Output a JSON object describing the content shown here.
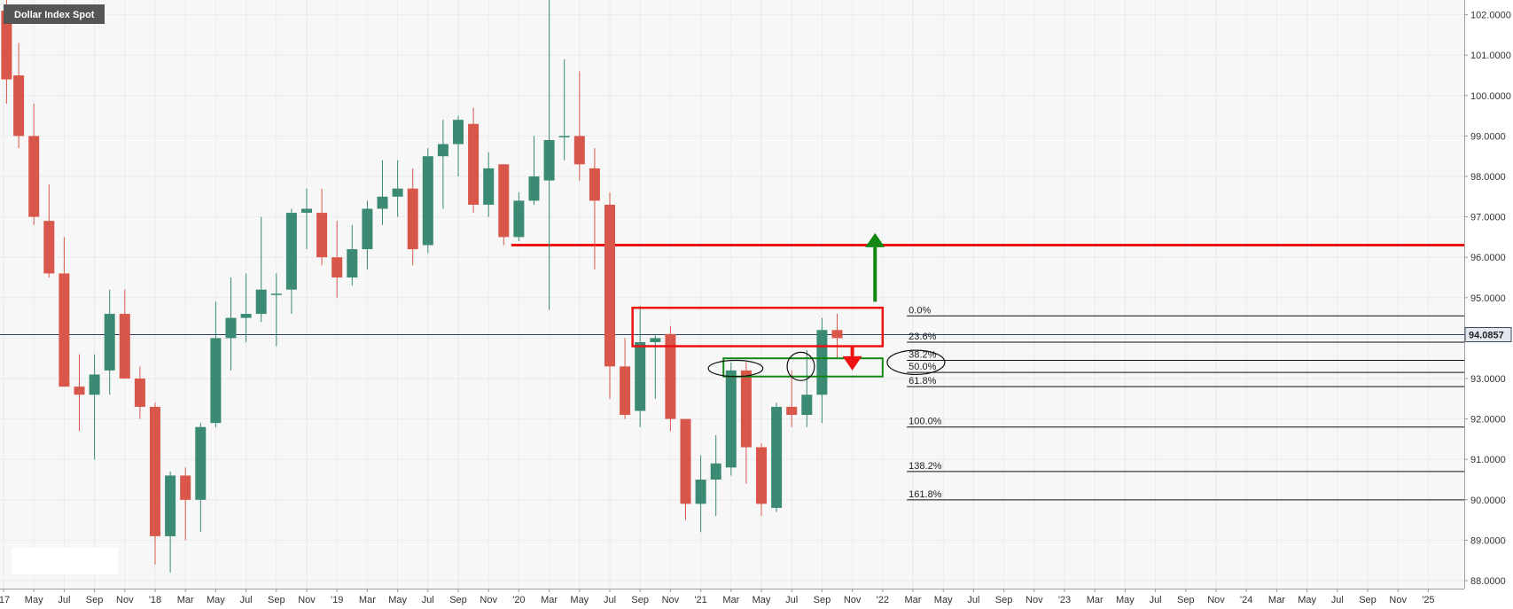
{
  "title": "Dollar Index Spot",
  "current_price": "94.0857",
  "colors": {
    "up": "#3a8a74",
    "down": "#d9574a",
    "resistance_line": "#ee1111",
    "target_arrow": "#118811",
    "down_arrow": "#ee1111",
    "support_box": "#118811",
    "title_bg": "#555555",
    "price_tag_bg": "#3b4a5c",
    "grid": "#e8eaee",
    "background": "#f7f7f7"
  },
  "chart_data": {
    "type": "candlestick",
    "title": "Dollar Index Spot",
    "ylim": [
      88.0,
      102.2
    ],
    "y_ticks": [
      {
        "value": 102,
        "label": "102.0000"
      },
      {
        "value": 101,
        "label": "101.0000"
      },
      {
        "value": 100,
        "label": "100.0000"
      },
      {
        "value": 99,
        "label": "99.0000"
      },
      {
        "value": 98,
        "label": "98.0000"
      },
      {
        "value": 97,
        "label": "97.0000"
      },
      {
        "value": 96,
        "label": "96.0000"
      },
      {
        "value": 95,
        "label": "95.0000"
      },
      {
        "value": 94,
        "label": "94.0000"
      },
      {
        "value": 93,
        "label": "93.0000"
      },
      {
        "value": 92,
        "label": "92.0000"
      },
      {
        "value": 91,
        "label": "91.0000"
      },
      {
        "value": 90,
        "label": "90.0000"
      },
      {
        "value": 89,
        "label": "89.0000"
      },
      {
        "value": 88,
        "label": "88.0000"
      }
    ],
    "x_ticks": [
      {
        "t": 0,
        "label": "'17"
      },
      {
        "t": 2,
        "label": "May"
      },
      {
        "t": 4,
        "label": "Jul"
      },
      {
        "t": 6,
        "label": "Sep"
      },
      {
        "t": 8,
        "label": "Nov"
      },
      {
        "t": 10,
        "label": "'18"
      },
      {
        "t": 12,
        "label": "Mar"
      },
      {
        "t": 14,
        "label": "May"
      },
      {
        "t": 16,
        "label": "Jul"
      },
      {
        "t": 18,
        "label": "Sep"
      },
      {
        "t": 20,
        "label": "Nov"
      },
      {
        "t": 22,
        "label": "'19"
      },
      {
        "t": 24,
        "label": "Mar"
      },
      {
        "t": 26,
        "label": "May"
      },
      {
        "t": 28,
        "label": "Jul"
      },
      {
        "t": 30,
        "label": "Sep"
      },
      {
        "t": 32,
        "label": "Nov"
      },
      {
        "t": 34,
        "label": "'20"
      },
      {
        "t": 36,
        "label": "Mar"
      },
      {
        "t": 38,
        "label": "May"
      },
      {
        "t": 40,
        "label": "Jul"
      },
      {
        "t": 42,
        "label": "Sep"
      },
      {
        "t": 44,
        "label": "Nov"
      },
      {
        "t": 46,
        "label": "'21"
      },
      {
        "t": 48,
        "label": "Mar"
      },
      {
        "t": 50,
        "label": "May"
      },
      {
        "t": 52,
        "label": "Jul"
      },
      {
        "t": 54,
        "label": "Sep"
      },
      {
        "t": 56,
        "label": "Nov"
      },
      {
        "t": 58,
        "label": "'22"
      },
      {
        "t": 60,
        "label": "Mar"
      },
      {
        "t": 62,
        "label": "May"
      },
      {
        "t": 64,
        "label": "Jul"
      },
      {
        "t": 66,
        "label": "Sep"
      },
      {
        "t": 68,
        "label": "Nov"
      },
      {
        "t": 70,
        "label": "'23"
      },
      {
        "t": 72,
        "label": "Mar"
      },
      {
        "t": 74,
        "label": "May"
      },
      {
        "t": 76,
        "label": "Jul"
      },
      {
        "t": 78,
        "label": "Sep"
      },
      {
        "t": 80,
        "label": "Nov"
      },
      {
        "t": 82,
        "label": "'24"
      },
      {
        "t": 84,
        "label": "Mar"
      },
      {
        "t": 86,
        "label": "May"
      },
      {
        "t": 88,
        "label": "Jul"
      },
      {
        "t": 90,
        "label": "Sep"
      },
      {
        "t": 92,
        "label": "Nov"
      },
      {
        "t": 94,
        "label": "'25"
      }
    ],
    "candles": [
      {
        "t": 0.2,
        "o": 102.1,
        "h": 102.6,
        "l": 99.8,
        "c": 100.4
      },
      {
        "t": 1.0,
        "o": 100.5,
        "h": 101.3,
        "l": 98.7,
        "c": 99.0
      },
      {
        "t": 2.0,
        "o": 99.0,
        "h": 99.8,
        "l": 96.8,
        "c": 97.0
      },
      {
        "t": 3.0,
        "o": 96.9,
        "h": 97.8,
        "l": 95.5,
        "c": 95.6
      },
      {
        "t": 4.0,
        "o": 95.6,
        "h": 96.5,
        "l": 92.8,
        "c": 92.8
      },
      {
        "t": 5.0,
        "o": 92.8,
        "h": 93.6,
        "l": 91.7,
        "c": 92.6
      },
      {
        "t": 6.0,
        "o": 92.6,
        "h": 93.6,
        "l": 91.0,
        "c": 93.1
      },
      {
        "t": 7.0,
        "o": 93.2,
        "h": 95.2,
        "l": 92.6,
        "c": 94.6
      },
      {
        "t": 8.0,
        "o": 94.6,
        "h": 95.2,
        "l": 93.0,
        "c": 93.0
      },
      {
        "t": 9.0,
        "o": 93.0,
        "h": 93.3,
        "l": 92.0,
        "c": 92.3
      },
      {
        "t": 10.0,
        "o": 92.3,
        "h": 92.4,
        "l": 88.4,
        "c": 89.1
      },
      {
        "t": 11.0,
        "o": 89.1,
        "h": 90.7,
        "l": 88.2,
        "c": 90.6
      },
      {
        "t": 12.0,
        "o": 90.6,
        "h": 90.8,
        "l": 89.0,
        "c": 90.0
      },
      {
        "t": 13.0,
        "o": 90.0,
        "h": 91.9,
        "l": 89.2,
        "c": 91.8
      },
      {
        "t": 14.0,
        "o": 91.9,
        "h": 94.9,
        "l": 91.8,
        "c": 94.0
      },
      {
        "t": 15.0,
        "o": 94.0,
        "h": 95.5,
        "l": 93.2,
        "c": 94.5
      },
      {
        "t": 16.0,
        "o": 94.5,
        "h": 95.6,
        "l": 93.9,
        "c": 94.6
      },
      {
        "t": 17.0,
        "o": 94.6,
        "h": 97.0,
        "l": 94.4,
        "c": 95.2
      },
      {
        "t": 18.0,
        "o": 95.1,
        "h": 95.6,
        "l": 93.8,
        "c": 95.1
      },
      {
        "t": 19.0,
        "o": 95.2,
        "h": 97.2,
        "l": 94.6,
        "c": 97.1
      },
      {
        "t": 20.0,
        "o": 97.1,
        "h": 97.7,
        "l": 96.2,
        "c": 97.2
      },
      {
        "t": 21.0,
        "o": 97.1,
        "h": 97.7,
        "l": 95.8,
        "c": 96.0
      },
      {
        "t": 22.0,
        "o": 96.0,
        "h": 96.9,
        "l": 95.0,
        "c": 95.5
      },
      {
        "t": 23.0,
        "o": 95.5,
        "h": 96.8,
        "l": 95.3,
        "c": 96.2
      },
      {
        "t": 24.0,
        "o": 96.2,
        "h": 97.4,
        "l": 95.7,
        "c": 97.2
      },
      {
        "t": 25.0,
        "o": 97.2,
        "h": 98.4,
        "l": 96.8,
        "c": 97.5
      },
      {
        "t": 26.0,
        "o": 97.5,
        "h": 98.4,
        "l": 97.0,
        "c": 97.7
      },
      {
        "t": 27.0,
        "o": 97.7,
        "h": 98.2,
        "l": 95.8,
        "c": 96.2
      },
      {
        "t": 28.0,
        "o": 96.3,
        "h": 98.7,
        "l": 96.1,
        "c": 98.5
      },
      {
        "t": 29.0,
        "o": 98.5,
        "h": 99.4,
        "l": 97.2,
        "c": 98.8
      },
      {
        "t": 30.0,
        "o": 98.8,
        "h": 99.5,
        "l": 98.0,
        "c": 99.4
      },
      {
        "t": 31.0,
        "o": 99.3,
        "h": 99.7,
        "l": 97.1,
        "c": 97.3
      },
      {
        "t": 32.0,
        "o": 97.3,
        "h": 98.6,
        "l": 97.0,
        "c": 98.2
      },
      {
        "t": 33.0,
        "o": 98.3,
        "h": 98.3,
        "l": 96.3,
        "c": 96.5
      },
      {
        "t": 34.0,
        "o": 96.5,
        "h": 97.6,
        "l": 96.4,
        "c": 97.4
      },
      {
        "t": 35.0,
        "o": 97.4,
        "h": 99.0,
        "l": 97.3,
        "c": 98.0
      },
      {
        "t": 36.0,
        "o": 97.9,
        "h": 102.9,
        "l": 94.7,
        "c": 98.9
      },
      {
        "t": 37.0,
        "o": 99.0,
        "h": 100.9,
        "l": 98.4,
        "c": 99.0
      },
      {
        "t": 38.0,
        "o": 99.0,
        "h": 100.6,
        "l": 97.9,
        "c": 98.3
      },
      {
        "t": 39.0,
        "o": 98.2,
        "h": 98.7,
        "l": 95.7,
        "c": 97.4
      },
      {
        "t": 40.0,
        "o": 97.3,
        "h": 97.6,
        "l": 92.5,
        "c": 93.3
      },
      {
        "t": 41.0,
        "o": 93.3,
        "h": 94.0,
        "l": 92.0,
        "c": 92.1
      },
      {
        "t": 42.0,
        "o": 92.2,
        "h": 94.8,
        "l": 91.8,
        "c": 93.9
      },
      {
        "t": 43.0,
        "o": 93.9,
        "h": 94.1,
        "l": 92.5,
        "c": 94.0
      },
      {
        "t": 44.0,
        "o": 94.1,
        "h": 94.3,
        "l": 91.7,
        "c": 92.0
      },
      {
        "t": 45.0,
        "o": 92.0,
        "h": 92.0,
        "l": 89.5,
        "c": 89.9
      },
      {
        "t": 46.0,
        "o": 89.9,
        "h": 91.1,
        "l": 89.2,
        "c": 90.5
      },
      {
        "t": 47.0,
        "o": 90.5,
        "h": 91.6,
        "l": 89.6,
        "c": 90.9
      },
      {
        "t": 48.0,
        "o": 90.8,
        "h": 93.4,
        "l": 90.6,
        "c": 93.2
      },
      {
        "t": 49.0,
        "o": 93.2,
        "h": 93.4,
        "l": 90.4,
        "c": 91.3
      },
      {
        "t": 50.0,
        "o": 91.3,
        "h": 91.4,
        "l": 89.6,
        "c": 89.9
      },
      {
        "t": 51.0,
        "o": 89.8,
        "h": 92.4,
        "l": 89.7,
        "c": 92.3
      },
      {
        "t": 52.0,
        "o": 92.3,
        "h": 93.2,
        "l": 91.8,
        "c": 92.1
      },
      {
        "t": 53.0,
        "o": 92.1,
        "h": 93.7,
        "l": 91.8,
        "c": 92.6
      },
      {
        "t": 54.0,
        "o": 92.6,
        "h": 94.5,
        "l": 91.9,
        "c": 94.2
      },
      {
        "t": 55.0,
        "o": 94.2,
        "h": 94.6,
        "l": 93.5,
        "c": 94.0
      }
    ],
    "resistance_line": {
      "value": 96.3,
      "t_start": 33.5
    },
    "fibonacci": [
      {
        "label": "0.0%",
        "value": 94.55
      },
      {
        "label": "23.6%",
        "value": 93.9
      },
      {
        "label": "38.2%",
        "value": 93.45
      },
      {
        "label": "50.0%",
        "value": 93.15
      },
      {
        "label": "61.8%",
        "value": 92.8
      },
      {
        "label": "100.0%",
        "value": 91.8
      },
      {
        "label": "138.2%",
        "value": 90.7
      },
      {
        "label": "161.8%",
        "value": 90.0
      }
    ],
    "resistance_box": {
      "t_start": 41.5,
      "t_end": 58.0,
      "top": 94.75,
      "bottom": 93.8
    },
    "support_box": {
      "t_start": 47.5,
      "t_end": 58.0,
      "top": 93.5,
      "bottom": 93.05
    },
    "target_arrow": {
      "t": 57.5,
      "from": 94.9,
      "to": 96.6
    },
    "down_arrow": {
      "t": 56.0,
      "from": 93.8,
      "to": 93.2
    },
    "ellipses": [
      {
        "t": 48.3,
        "value": 93.25,
        "rt": 1.8,
        "rv": 0.2
      },
      {
        "t": 52.6,
        "value": 93.3,
        "rt": 0.9,
        "rv": 0.35
      },
      {
        "t": 60.2,
        "value": 93.4,
        "rt": 1.9,
        "rv": 0.3
      }
    ]
  }
}
